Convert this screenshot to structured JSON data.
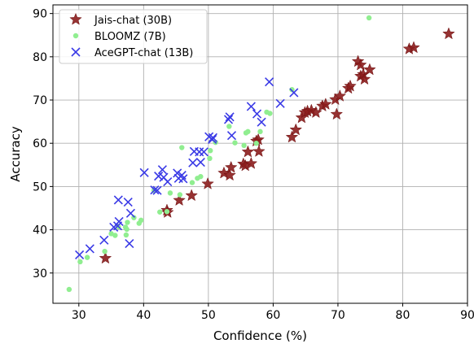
{
  "chart_data": {
    "type": "scatter",
    "xlabel": "Confidence (%)",
    "ylabel": "Accuracy",
    "xlim": [
      26,
      90
    ],
    "ylim": [
      23,
      92
    ],
    "xticks": [
      "30",
      "40",
      "50",
      "60",
      "70",
      "80",
      "90"
    ],
    "yticks": [
      "30",
      "40",
      "50",
      "60",
      "70",
      "80",
      "90"
    ],
    "grid": true,
    "legend_position": "top-left",
    "series": [
      {
        "name": "Jais-chat (30B)",
        "marker": "star",
        "color": "#8b1c1c",
        "points": [
          [
            34.1,
            33.4
          ],
          [
            43.6,
            44.5
          ],
          [
            43.7,
            44.0
          ],
          [
            45.5,
            46.8
          ],
          [
            47.4,
            47.9
          ],
          [
            49.9,
            50.6
          ],
          [
            52.4,
            53.1
          ],
          [
            53.3,
            52.6
          ],
          [
            53.5,
            54.4
          ],
          [
            55.4,
            55.2
          ],
          [
            55.7,
            54.8
          ],
          [
            56.1,
            58.0
          ],
          [
            56.6,
            55.3
          ],
          [
            57.4,
            60.5
          ],
          [
            57.7,
            60.8
          ],
          [
            57.8,
            58.1
          ],
          [
            62.9,
            61.4
          ],
          [
            63.5,
            63.1
          ],
          [
            64.4,
            65.9
          ],
          [
            64.9,
            67.1
          ],
          [
            65.3,
            67.4
          ],
          [
            65.9,
            67.6
          ],
          [
            66.6,
            67.1
          ],
          [
            67.6,
            68.6
          ],
          [
            68.1,
            69.0
          ],
          [
            69.8,
            66.7
          ],
          [
            69.6,
            70.1
          ],
          [
            70.3,
            70.9
          ],
          [
            71.6,
            72.7
          ],
          [
            71.9,
            73.2
          ],
          [
            73.1,
            78.9
          ],
          [
            73.5,
            78.1
          ],
          [
            73.5,
            75.5
          ],
          [
            73.9,
            75.9
          ],
          [
            74.1,
            74.8
          ],
          [
            74.9,
            77.0
          ],
          [
            81.0,
            81.8
          ],
          [
            81.7,
            82.1
          ],
          [
            87.1,
            85.3
          ]
        ]
      },
      {
        "name": "BLOOMZ (7B)",
        "marker": "circle",
        "color": "#90ee90",
        "points": [
          [
            28.5,
            26.2
          ],
          [
            30.2,
            32.6
          ],
          [
            31.3,
            33.6
          ],
          [
            34.0,
            35.0
          ],
          [
            35.0,
            39.1
          ],
          [
            35.6,
            38.7
          ],
          [
            36.1,
            40.7
          ],
          [
            37.2,
            40.6
          ],
          [
            37.4,
            40.1
          ],
          [
            37.3,
            38.8
          ],
          [
            37.5,
            41.7
          ],
          [
            38.5,
            42.8
          ],
          [
            39.3,
            41.5
          ],
          [
            39.6,
            42.2
          ],
          [
            41.6,
            49.1
          ],
          [
            42.5,
            44.1
          ],
          [
            43.6,
            44.2
          ],
          [
            44.1,
            48.5
          ],
          [
            45.6,
            48.1
          ],
          [
            45.9,
            59.0
          ],
          [
            47.5,
            50.9
          ],
          [
            48.3,
            51.9
          ],
          [
            48.8,
            52.3
          ],
          [
            50.2,
            56.5
          ],
          [
            50.3,
            58.3
          ],
          [
            51.1,
            60.2
          ],
          [
            53.2,
            63.9
          ],
          [
            54.1,
            60.1
          ],
          [
            55.5,
            59.5
          ],
          [
            55.8,
            62.4
          ],
          [
            56.1,
            62.7
          ],
          [
            57.4,
            60.0
          ],
          [
            58.0,
            62.7
          ],
          [
            59.0,
            67.2
          ],
          [
            59.5,
            66.9
          ],
          [
            62.9,
            72.4
          ],
          [
            74.8,
            89.0
          ]
        ]
      },
      {
        "name": "AceGPT-chat (13B)",
        "marker": "x",
        "color": "#3a3ae6",
        "points": [
          [
            30.1,
            34.2
          ],
          [
            31.7,
            35.6
          ],
          [
            33.9,
            37.6
          ],
          [
            35.4,
            40.6
          ],
          [
            36.0,
            40.9
          ],
          [
            36.1,
            46.9
          ],
          [
            36.2,
            41.9
          ],
          [
            37.6,
            46.4
          ],
          [
            37.8,
            36.8
          ],
          [
            38.0,
            43.8
          ],
          [
            40.1,
            53.2
          ],
          [
            41.7,
            49.2
          ],
          [
            42.1,
            49.1
          ],
          [
            42.3,
            52.4
          ],
          [
            42.9,
            53.9
          ],
          [
            43.1,
            52.1
          ],
          [
            43.7,
            51.1
          ],
          [
            45.2,
            53.1
          ],
          [
            45.4,
            51.9
          ],
          [
            45.9,
            52.6
          ],
          [
            46.1,
            51.8
          ],
          [
            47.6,
            55.5
          ],
          [
            47.8,
            58.1
          ],
          [
            48.6,
            58.0
          ],
          [
            48.8,
            55.6
          ],
          [
            49.3,
            58.0
          ],
          [
            50.1,
            61.5
          ],
          [
            50.6,
            60.9
          ],
          [
            50.7,
            61.3
          ],
          [
            53.1,
            65.5
          ],
          [
            53.3,
            66.1
          ],
          [
            53.6,
            61.8
          ],
          [
            56.6,
            68.5
          ],
          [
            57.5,
            66.8
          ],
          [
            58.2,
            64.9
          ],
          [
            59.4,
            74.2
          ],
          [
            61.1,
            69.2
          ],
          [
            63.2,
            71.7
          ]
        ]
      }
    ]
  }
}
